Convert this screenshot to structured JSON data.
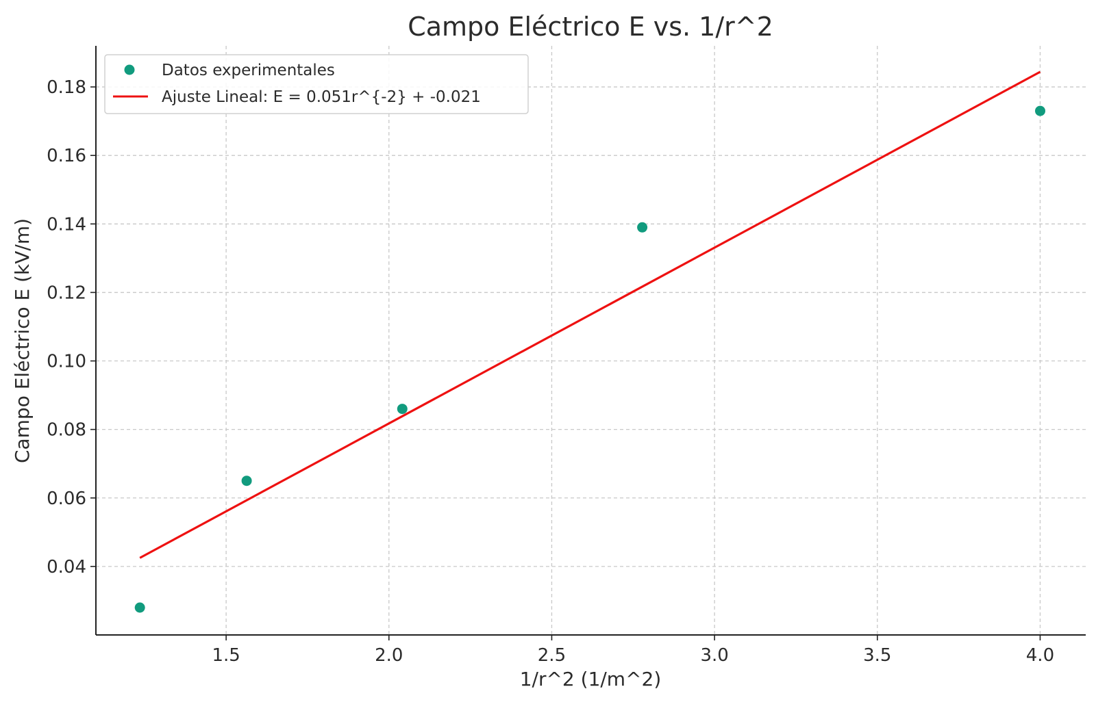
{
  "chart_data": {
    "type": "scatter",
    "title": "Campo Eléctrico E vs. 1/r^2",
    "xlabel": "1/r^2 (1/m^2)",
    "ylabel": "Campo Eléctrico E (kV/m)",
    "xlim": [
      1.1,
      4.14
    ],
    "ylim": [
      0.02,
      0.192
    ],
    "xticks": [
      {
        "value": 1.5,
        "label": "1.5"
      },
      {
        "value": 2.0,
        "label": "2.0"
      },
      {
        "value": 2.5,
        "label": "2.5"
      },
      {
        "value": 3.0,
        "label": "3.0"
      },
      {
        "value": 3.5,
        "label": "3.5"
      },
      {
        "value": 4.0,
        "label": "4.0"
      }
    ],
    "yticks": [
      {
        "value": 0.04,
        "label": "0.04"
      },
      {
        "value": 0.06,
        "label": "0.06"
      },
      {
        "value": 0.08,
        "label": "0.08"
      },
      {
        "value": 0.1,
        "label": "0.10"
      },
      {
        "value": 0.12,
        "label": "0.12"
      },
      {
        "value": 0.14,
        "label": "0.14"
      },
      {
        "value": 0.16,
        "label": "0.16"
      },
      {
        "value": 0.18,
        "label": "0.18"
      }
    ],
    "grid": true,
    "legend_position": "top-left",
    "series": [
      {
        "name": "Datos experimentales",
        "kind": "points",
        "color": "#119b7e",
        "x": [
          1.235,
          1.563,
          2.041,
          2.778,
          4.0
        ],
        "y": [
          0.028,
          0.065,
          0.086,
          0.139,
          0.173
        ]
      },
      {
        "name": "Ajuste Lineal: E = 0.051r^{-2} + -0.021",
        "kind": "line",
        "color": "#ee1111",
        "x": [
          1.235,
          4.0
        ],
        "y": [
          0.0425,
          0.1844
        ]
      }
    ]
  }
}
